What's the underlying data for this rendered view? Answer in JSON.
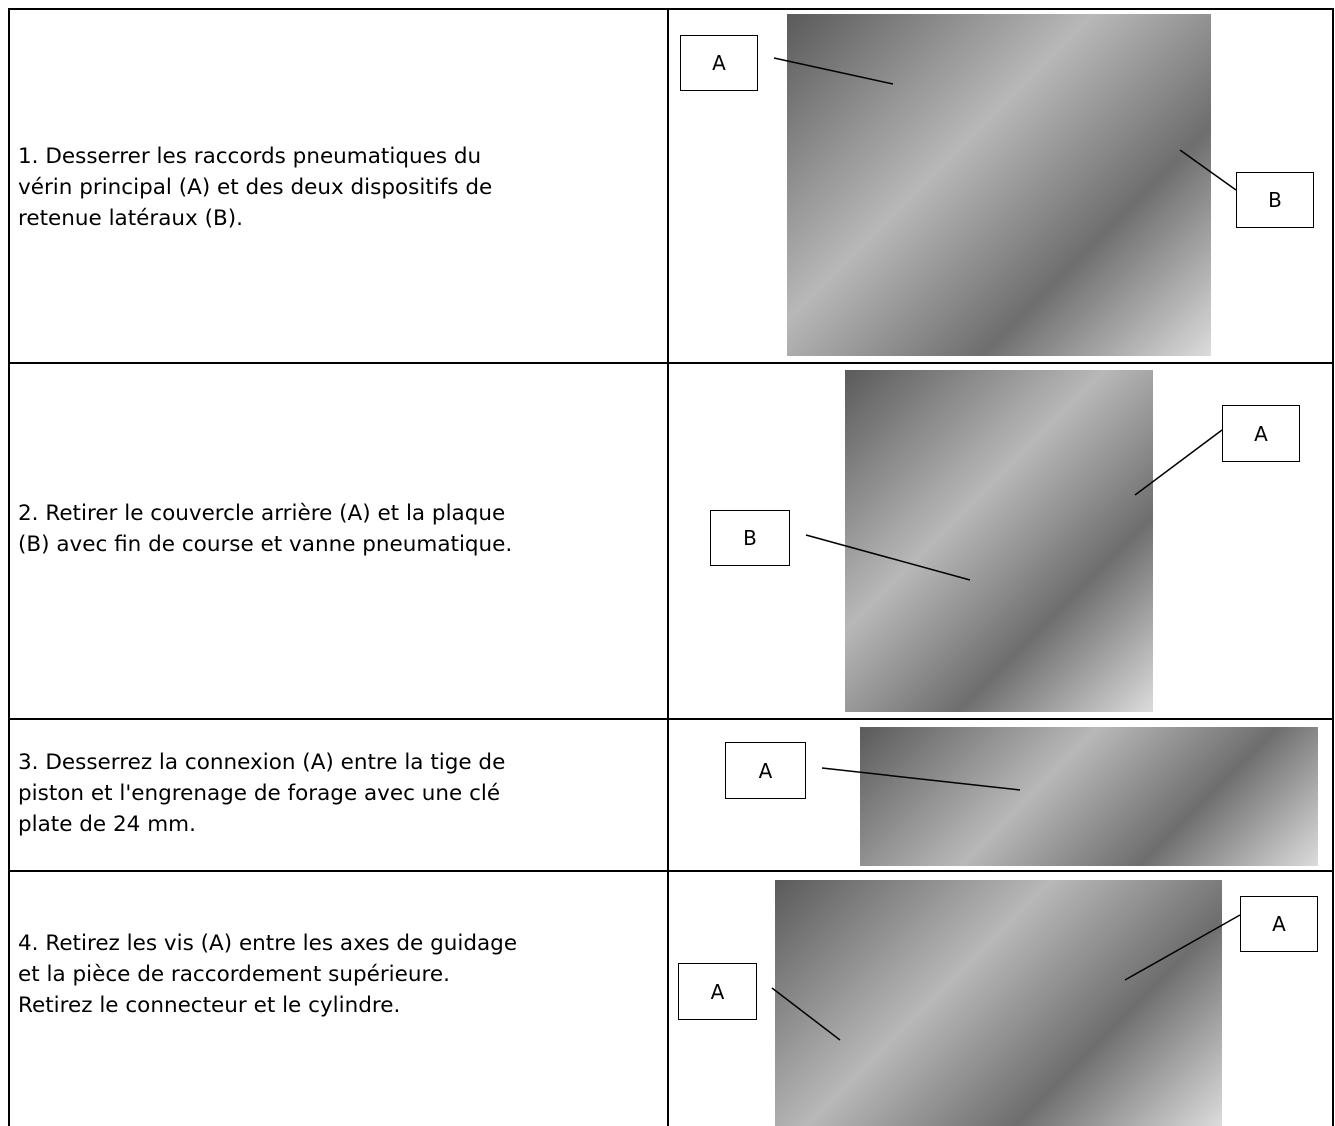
{
  "rows": [
    {
      "paragraphs": [
        "1. Desserrer les raccords pneumatiques du vérin principal (A) et des deux dispositifs de retenue latéraux (B)."
      ],
      "labels": [
        "A",
        "B"
      ]
    },
    {
      "paragraphs": [
        "2. Retirer le couvercle arrière (A) et la plaque (B) avec fin de course et vanne pneumatique."
      ],
      "labels": [
        "A",
        "B"
      ]
    },
    {
      "paragraphs": [
        "3. Desserrez la connexion (A) entre la tige de piston et l'engrenage de forage avec une clé plate de 24 mm."
      ],
      "labels": [
        "A"
      ]
    },
    {
      "paragraphs": [
        "4. Retirez les vis (A) entre les axes de guidage et la pièce de raccordement supérieure.",
        "Retirez le connecteur et le cylindre."
      ],
      "labels": [
        "A",
        "A"
      ]
    }
  ]
}
